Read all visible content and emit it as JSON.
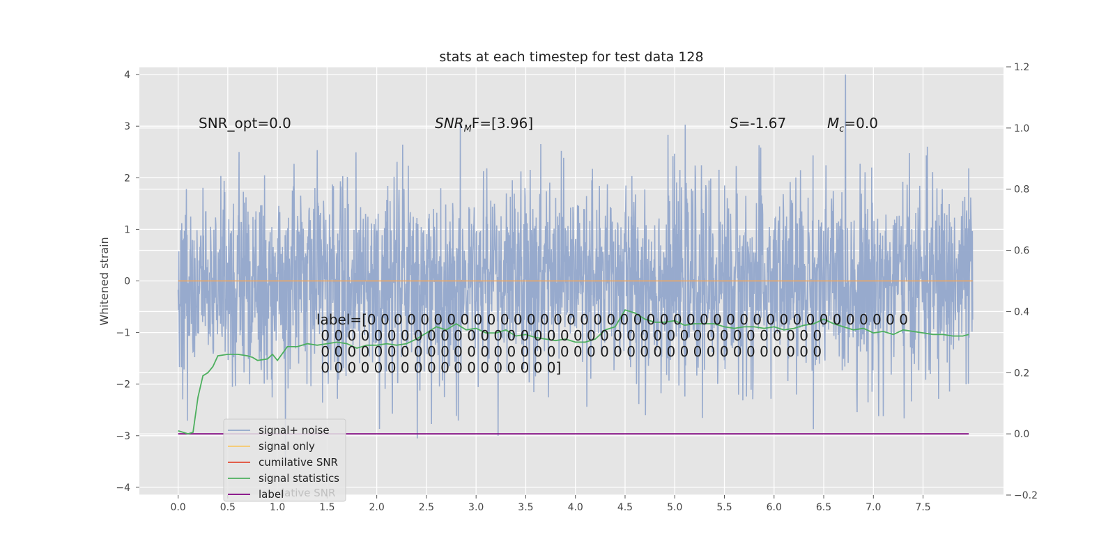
{
  "chart_data": {
    "type": "line",
    "title": "stats at each timestep for test data 128",
    "ylabel": "Whitened strain",
    "xlabel": "",
    "xlim": [
      -0.39,
      8.31
    ],
    "ylim": [
      -4.15,
      4.15
    ],
    "y2lim": [
      -0.2,
      1.2
    ],
    "xticks": [
      "0.0",
      "0.5",
      "1.0",
      "1.5",
      "2.0",
      "2.5",
      "3.0",
      "3.5",
      "4.0",
      "4.5",
      "5.0",
      "5.5",
      "6.0",
      "6.5",
      "7.0",
      "7.5"
    ],
    "yticks": [
      "4",
      "3",
      "2",
      "1",
      "0",
      "−1",
      "−2",
      "−3",
      "−4"
    ],
    "y2ticks": [
      "1.2",
      "1.0",
      "0.8",
      "0.6",
      "0.4",
      "0.2",
      "0.0",
      "−0.2"
    ],
    "grid": true,
    "legend_position": "lower-left",
    "colors": {
      "noise": "#92a7cb",
      "signal": "#f0c040",
      "cumulative": "#e24a33",
      "statistics": "#4daf5e",
      "label": "#800080",
      "background": "#e5e5e5"
    },
    "legend": [
      {
        "name": "signal+ noise",
        "color": "#92a7cb"
      },
      {
        "name": "signal only",
        "color": "#f7c86a"
      },
      {
        "name": "cumilative SNR",
        "color": "#e24a33"
      },
      {
        "name": "signal statistics",
        "color": "#4daf5e"
      },
      {
        "name": "label",
        "color": "#800080"
      }
    ],
    "legend_overlap_text": "lative SNR",
    "annotations": {
      "snr_opt": "SNR_opt=0.0",
      "snr_mf_prefix": "SNR",
      "snr_mf_sub": "M",
      "snr_mf_suffix": "F=[3.96]",
      "s_symbol": "S",
      "s_value": "=-1.67",
      "mc_symbol": "M",
      "mc_sub": "c",
      "mc_value": "=0.0",
      "label_lines": [
        "label=[0 0 0 0 0 0 0 0 0 0 0 0 0 0 0 0 0 0 0 0 0 0 0 0 0 0 0 0 0 0 0 0 0 0 0 0 0 0 0 0 0",
        " 0 0 0 0 0 0 0 0 0 0 0 0 0 0 0 0 0 0 0 0 0 0 0 0 0 0 0 0 0 0 0 0 0 0 0 0 0 0",
        " 0 0 0 0 0 0 0 0 0 0 0 0 0 0 0 0 0 0 0 0 0 0 0 0 0 0 0 0 0 0 0 0 0 0 0 0 0 0",
        " 0 0 0 0 0 0 0 0 0 0 0 0 0 0 0 0 0 0]"
      ]
    },
    "series": [
      {
        "name": "signal+ noise",
        "axis": "left",
        "x_range": [
          0,
          8
        ],
        "approx_range": [
          -3.6,
          4.0
        ],
        "approx_std": 0.95
      },
      {
        "name": "signal only",
        "axis": "left",
        "x": [
          0,
          8
        ],
        "values": [
          0,
          0
        ]
      },
      {
        "name": "label",
        "axis": "right",
        "x": [
          0,
          7.96
        ],
        "values": [
          0,
          0
        ]
      },
      {
        "name": "signal statistics",
        "axis": "right",
        "x": [
          0,
          0.05,
          0.1,
          0.15,
          0.2,
          0.25,
          0.3,
          0.35,
          0.4,
          0.5,
          0.6,
          0.7,
          0.75,
          0.8,
          0.9,
          0.95,
          1.0,
          1.1,
          1.2,
          1.3,
          1.4,
          1.5,
          1.6,
          1.7,
          1.8,
          1.9,
          2.0,
          2.1,
          2.2,
          2.3,
          2.4,
          2.5,
          2.6,
          2.7,
          2.8,
          2.9,
          3.0,
          3.1,
          3.2,
          3.3,
          3.4,
          3.5,
          3.6,
          3.7,
          3.8,
          3.9,
          4.0,
          4.1,
          4.2,
          4.3,
          4.4,
          4.5,
          4.6,
          4.7,
          4.8,
          4.9,
          5.0,
          5.1,
          5.2,
          5.3,
          5.4,
          5.5,
          5.6,
          5.7,
          5.8,
          5.9,
          6.0,
          6.1,
          6.2,
          6.3,
          6.4,
          6.5,
          6.6,
          6.7,
          6.8,
          6.9,
          7.0,
          7.1,
          7.2,
          7.3,
          7.4,
          7.5,
          7.6,
          7.7,
          7.8,
          7.9,
          7.96
        ],
        "values": [
          0.01,
          0.005,
          0.0,
          0.005,
          0.12,
          0.19,
          0.2,
          0.22,
          0.255,
          0.26,
          0.26,
          0.255,
          0.25,
          0.24,
          0.245,
          0.26,
          0.24,
          0.285,
          0.285,
          0.295,
          0.29,
          0.295,
          0.3,
          0.295,
          0.28,
          0.29,
          0.29,
          0.295,
          0.29,
          0.295,
          0.31,
          0.33,
          0.35,
          0.34,
          0.36,
          0.34,
          0.345,
          0.33,
          0.33,
          0.34,
          0.32,
          0.325,
          0.315,
          0.31,
          0.305,
          0.31,
          0.3,
          0.3,
          0.31,
          0.34,
          0.35,
          0.405,
          0.395,
          0.375,
          0.365,
          0.365,
          0.37,
          0.355,
          0.36,
          0.36,
          0.36,
          0.35,
          0.345,
          0.35,
          0.35,
          0.345,
          0.35,
          0.34,
          0.345,
          0.355,
          0.36,
          0.375,
          0.36,
          0.35,
          0.34,
          0.345,
          0.33,
          0.335,
          0.325,
          0.34,
          0.335,
          0.33,
          0.325,
          0.325,
          0.32,
          0.32,
          0.325
        ]
      }
    ]
  }
}
